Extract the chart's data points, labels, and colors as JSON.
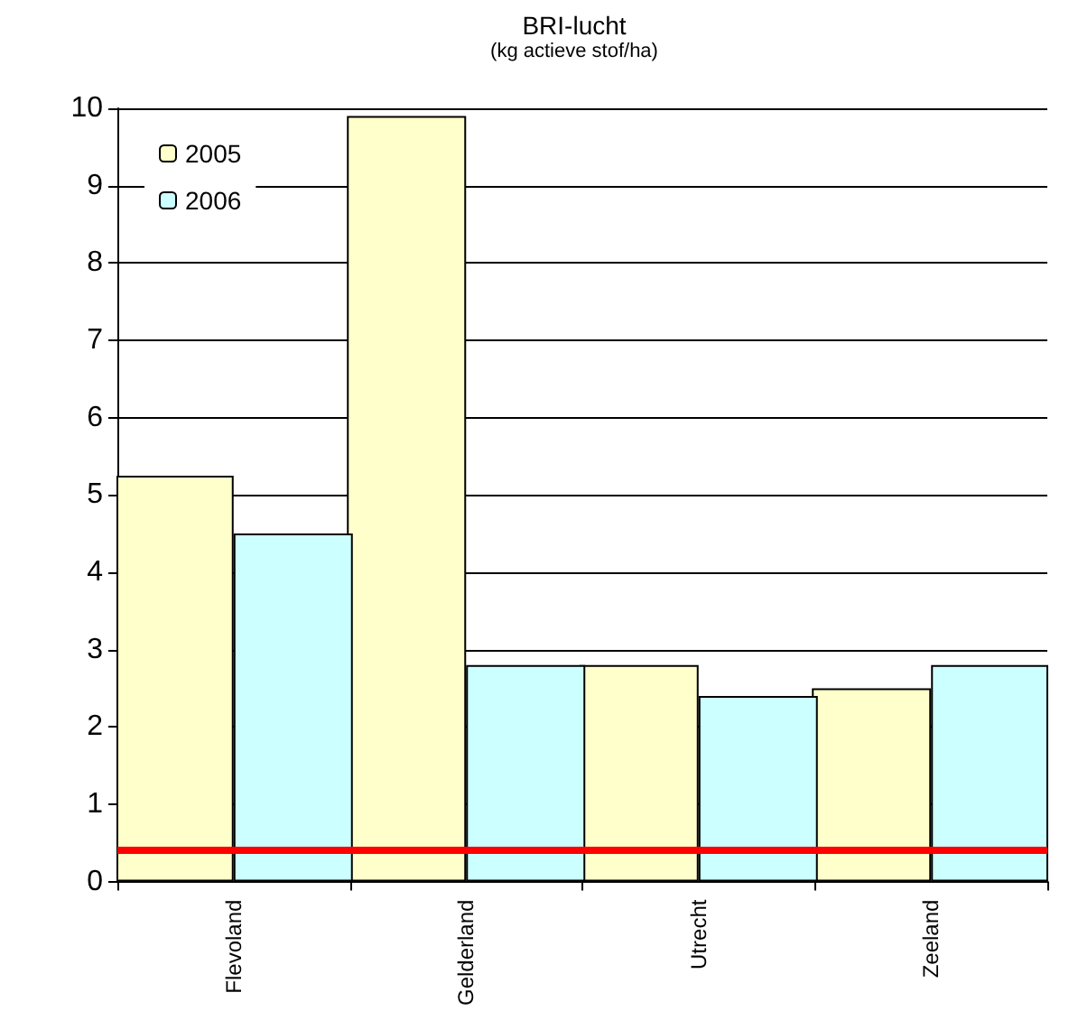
{
  "chart_data": {
    "type": "bar",
    "title": "BRI-lucht",
    "subtitle": "(kg actieve stof/ha)",
    "categories": [
      "Flevoland",
      "Gelderland",
      "Utrecht",
      "Zeeland"
    ],
    "series": [
      {
        "name": "2005",
        "color": "#ffffcc",
        "values": [
          5.25,
          9.9,
          2.8,
          2.5
        ]
      },
      {
        "name": "2006",
        "color": "#ccffff",
        "values": [
          4.5,
          2.8,
          2.4,
          2.8
        ]
      }
    ],
    "ylim": [
      0,
      10
    ],
    "yticks": [
      0,
      1,
      2,
      3,
      4,
      5,
      6,
      7,
      8,
      9,
      10
    ],
    "grid": "y",
    "legend": "top left",
    "ref_lines": [
      {
        "axis": "y",
        "value": 0.4,
        "color": "#ff0000"
      }
    ]
  }
}
